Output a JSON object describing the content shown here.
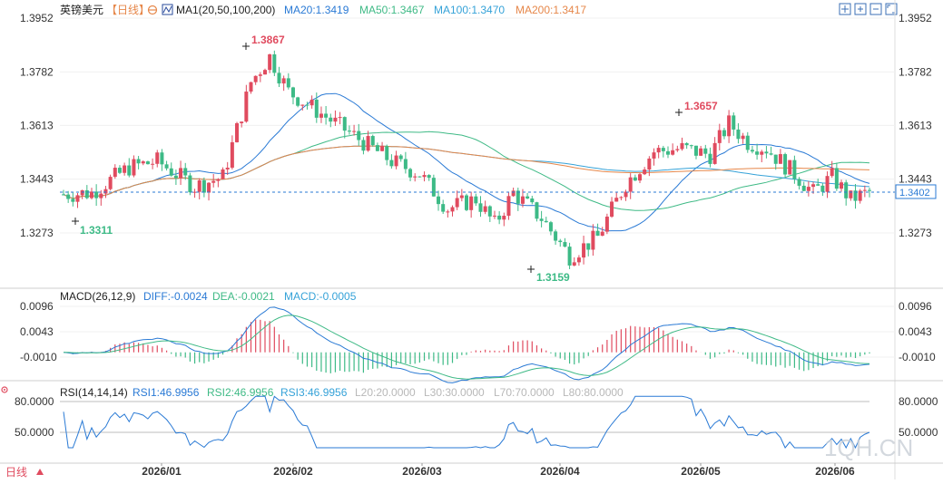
{
  "instrument": {
    "name": "英镑美元",
    "period_label": "【日线】",
    "refresh_icon": "refresh-icon"
  },
  "ma": {
    "label": "MA1(20,50,100,200)",
    "items": [
      {
        "text": "MA20:1.3419",
        "color": "#2a7ad5"
      },
      {
        "text": "MA50:1.3467",
        "color": "#3fba86"
      },
      {
        "text": "MA100:1.3470",
        "color": "#35a2d8"
      },
      {
        "text": "MA200:1.3417",
        "color": "#e6874a"
      }
    ]
  },
  "price_axis": {
    "ticks": [
      "1.3952",
      "1.3782",
      "1.3613",
      "1.3443",
      "1.3273"
    ],
    "current_price": "1.3402",
    "tick_values": [
      1.3952,
      1.3782,
      1.3613,
      1.3443,
      1.3273
    ]
  },
  "annotations": {
    "high_1": "1.3867",
    "high_2": "1.3657",
    "low_1": "1.3311",
    "low_2": "1.3159"
  },
  "macd": {
    "label": "MACD(26,12,9)",
    "items": [
      {
        "text": "DIFF:-0.0024",
        "color": "#2a7ad5"
      },
      {
        "text": "DEA:-0.0021",
        "color": "#3fba86"
      },
      {
        "text": "MACD:-0.0005",
        "color": "#35a2d8"
      }
    ],
    "ticks": [
      "0.0096",
      "0.0043",
      "-0.0010"
    ]
  },
  "rsi": {
    "label": "RSI(14,14,14)",
    "items": [
      {
        "text": "RSI1:46.9956",
        "color": "#2a7ad5"
      },
      {
        "text": "RSI2:46.9956",
        "color": "#3fba86"
      },
      {
        "text": "RSI3:46.9956",
        "color": "#35a2d8"
      },
      {
        "text": "L20:20.0000",
        "color": "#b8b8b8"
      },
      {
        "text": "L30:30.0000",
        "color": "#b8b8b8"
      },
      {
        "text": "L70:70.0000",
        "color": "#b8b8b8"
      },
      {
        "text": "L80:80.0000",
        "color": "#b8b8b8"
      }
    ],
    "ticks": [
      "80.0000",
      "50.0000"
    ]
  },
  "time_axis": {
    "labels": [
      "2026/01",
      "2026/02",
      "2026/03",
      "2026/04",
      "2026/05",
      "2026/06"
    ]
  },
  "footer": {
    "period_label": "日线",
    "watermark": "1QH.CN"
  },
  "toolbar": {
    "icons": [
      "expand-icon",
      "zoom-in-icon",
      "zoom-out-icon",
      "fullscreen-icon"
    ]
  },
  "colors": {
    "up": "#e04b5f",
    "down": "#3dba86",
    "ma20": "#2a7ad5",
    "ma50": "#3fba86",
    "ma100": "#35a2d8",
    "ma200": "#e6874a",
    "high_label": "#e04b5f",
    "low_label": "#3dba86"
  }
}
